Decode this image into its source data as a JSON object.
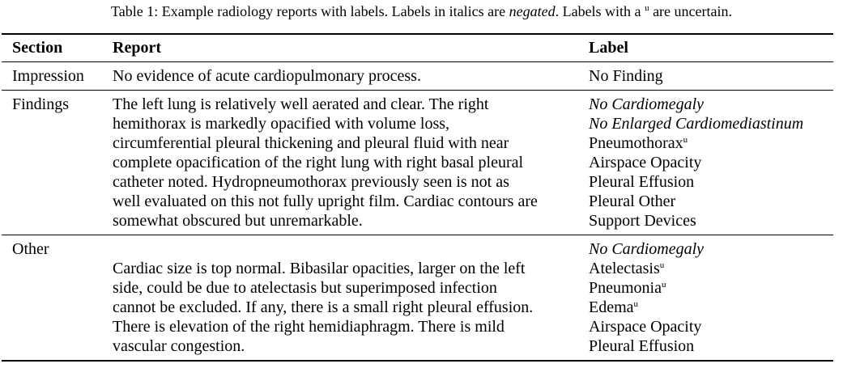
{
  "caption": {
    "prefix": "Table 1: Example radiology reports with labels. Labels in italics are ",
    "negated": "negated",
    "middle": ". Labels with a ",
    "sup": "u",
    "suffix": " are uncertain."
  },
  "header": {
    "section": "Section",
    "report": "Report",
    "label": "Label"
  },
  "rows": [
    {
      "section": "Impression",
      "report_lines": [
        "No evidence of acute cardiopulmonary process."
      ],
      "labels": [
        {
          "text": "No Finding",
          "negated": false,
          "uncertain": false
        }
      ]
    },
    {
      "section": "Findings",
      "report_lines": [
        "The left lung is relatively well aerated and clear. The right",
        "hemithorax is markedly opacified with volume loss,",
        "circumferential pleural thickening and pleural fluid with near",
        "complete opacification of the right lung with right basal pleural",
        "catheter noted. Hydropneumothorax previously seen is not as",
        "well evaluated on this not fully upright film. Cardiac contours are",
        "somewhat obscured but unremarkable."
      ],
      "labels": [
        {
          "text": "No Cardiomegaly",
          "negated": true,
          "uncertain": false
        },
        {
          "text": "No Enlarged Cardiomediastinum",
          "negated": true,
          "uncertain": false
        },
        {
          "text": "Pneumothorax",
          "negated": false,
          "uncertain": true
        },
        {
          "text": "Airspace Opacity",
          "negated": false,
          "uncertain": false
        },
        {
          "text": "Pleural Effusion",
          "negated": false,
          "uncertain": false
        },
        {
          "text": "Pleural Other",
          "negated": false,
          "uncertain": false
        },
        {
          "text": "Support Devices",
          "negated": false,
          "uncertain": false
        }
      ]
    },
    {
      "section": "Other",
      "report_lines": [
        "Cardiac size is top normal. Bibasilar opacities, larger on the left",
        "side, could be due to atelectasis but superimposed infection",
        "cannot be excluded. If any, there is a small right pleural effusion.",
        "There is elevation of the right hemidiaphragm. There is mild",
        "vascular congestion."
      ],
      "labels": [
        {
          "text": "No Cardiomegaly",
          "negated": true,
          "uncertain": false
        },
        {
          "text": "Atelectasis",
          "negated": false,
          "uncertain": true
        },
        {
          "text": "Pneumonia",
          "negated": false,
          "uncertain": true
        },
        {
          "text": "Edema",
          "negated": false,
          "uncertain": true
        },
        {
          "text": "Airspace Opacity",
          "negated": false,
          "uncertain": false
        },
        {
          "text": "Pleural Effusion",
          "negated": false,
          "uncertain": false
        }
      ]
    }
  ],
  "uncertain_marker": "u"
}
